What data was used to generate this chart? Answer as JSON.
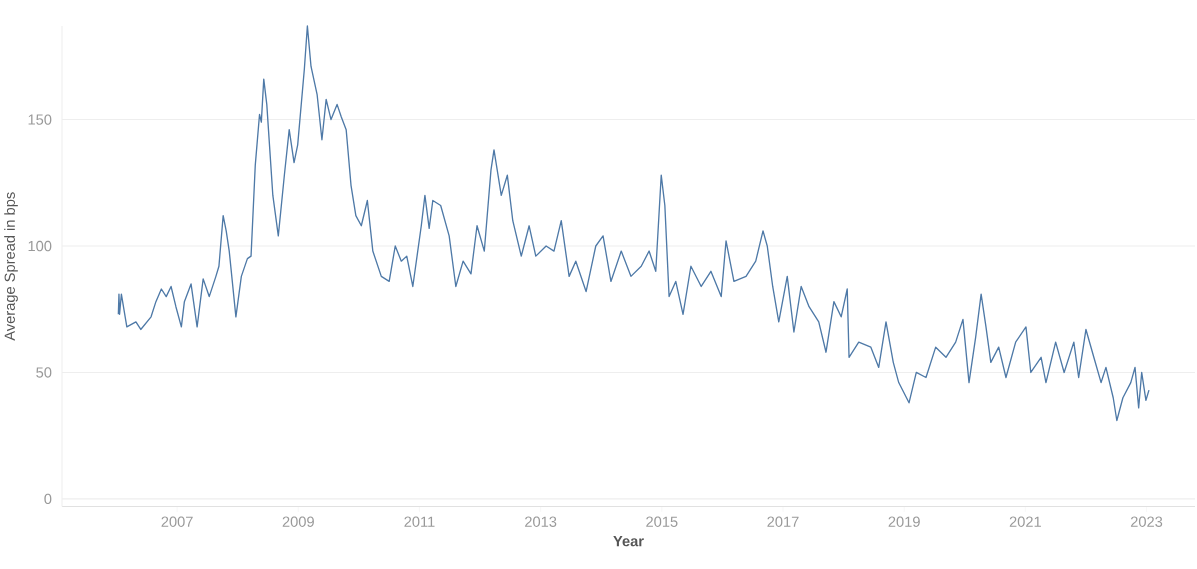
{
  "chart_data": {
    "type": "line",
    "xlabel": "Year",
    "ylabel": "Average Spread in bps",
    "color": "#4e79a7",
    "grid": "y",
    "xlim": [
      2005.1,
      2023.8
    ],
    "ylim": [
      -3,
      187
    ],
    "xticks": [
      2007,
      2009,
      2011,
      2013,
      2015,
      2017,
      2019,
      2021,
      2023
    ],
    "yticks": [
      0,
      50,
      100,
      150
    ],
    "x": [
      2006.03,
      2006.04,
      2006.05,
      2006.08,
      2006.17,
      2006.32,
      2006.4,
      2006.57,
      2006.65,
      2006.74,
      2006.82,
      2006.9,
      2006.98,
      2007.07,
      2007.12,
      2007.23,
      2007.33,
      2007.43,
      2007.53,
      2007.64,
      2007.69,
      2007.76,
      2007.81,
      2007.86,
      2007.97,
      2008.06,
      2008.16,
      2008.22,
      2008.29,
      2008.36,
      2008.39,
      2008.43,
      2008.48,
      2008.58,
      2008.67,
      2008.77,
      2008.85,
      2008.93,
      2008.99,
      2009.1,
      2009.15,
      2009.21,
      2009.31,
      2009.39,
      2009.46,
      2009.54,
      2009.64,
      2009.71,
      2009.79,
      2009.87,
      2009.95,
      2010.04,
      2010.14,
      2010.23,
      2010.37,
      2010.5,
      2010.6,
      2010.7,
      2010.79,
      2010.89,
      2011.03,
      2011.09,
      2011.16,
      2011.22,
      2011.35,
      2011.49,
      2011.6,
      2011.72,
      2011.85,
      2011.95,
      2012.07,
      2012.18,
      2012.23,
      2012.35,
      2012.45,
      2012.54,
      2012.68,
      2012.81,
      2012.92,
      2013.09,
      2013.22,
      2013.34,
      2013.47,
      2013.58,
      2013.75,
      2013.91,
      2014.03,
      2014.16,
      2014.33,
      2014.49,
      2014.66,
      2014.79,
      2014.9,
      2014.99,
      2015.05,
      2015.12,
      2015.23,
      2015.35,
      2015.48,
      2015.65,
      2015.81,
      2015.98,
      2016.06,
      2016.19,
      2016.39,
      2016.55,
      2016.67,
      2016.74,
      2016.83,
      2016.93,
      2017.07,
      2017.18,
      2017.3,
      2017.43,
      2017.59,
      2017.71,
      2017.84,
      2017.96,
      2018.06,
      2018.09,
      2018.25,
      2018.45,
      2018.58,
      2018.7,
      2018.82,
      2018.91,
      2019.08,
      2019.2,
      2019.36,
      2019.52,
      2019.69,
      2019.85,
      2019.97,
      2020.07,
      2020.18,
      2020.27,
      2020.35,
      2020.43,
      2020.56,
      2020.68,
      2020.84,
      2021.01,
      2021.09,
      2021.26,
      2021.34,
      2021.5,
      2021.64,
      2021.8,
      2021.88,
      2022.0,
      2022.13,
      2022.25,
      2022.33,
      2022.45,
      2022.51,
      2022.61,
      2022.74,
      2022.81,
      2022.87,
      2022.92,
      2022.99,
      2023.04
    ],
    "values": [
      73,
      81,
      73,
      81,
      68,
      70,
      67,
      72,
      78,
      83,
      80,
      84,
      76,
      68,
      78,
      85,
      68,
      87,
      80,
      88,
      92,
      112,
      106,
      98,
      72,
      88,
      95,
      96,
      132,
      152,
      149,
      166,
      156,
      120,
      104,
      128,
      146,
      133,
      140,
      170,
      187,
      171,
      160,
      142,
      158,
      150,
      156,
      151,
      146,
      124,
      112,
      108,
      118,
      98,
      88,
      86,
      100,
      94,
      96,
      84,
      108,
      120,
      107,
      118,
      116,
      104,
      84,
      94,
      89,
      108,
      98,
      130,
      138,
      120,
      128,
      110,
      96,
      108,
      96,
      100,
      98,
      110,
      88,
      94,
      82,
      100,
      104,
      86,
      98,
      88,
      92,
      98,
      90,
      128,
      116,
      80,
      86,
      73,
      92,
      84,
      90,
      80,
      102,
      86,
      88,
      94,
      106,
      100,
      84,
      70,
      88,
      66,
      84,
      76,
      70,
      58,
      78,
      72,
      83,
      56,
      62,
      60,
      52,
      70,
      54,
      46,
      38,
      50,
      48,
      60,
      56,
      62,
      71,
      46,
      64,
      81,
      68,
      54,
      60,
      48,
      62,
      68,
      50,
      56,
      46,
      62,
      50,
      62,
      48,
      67,
      56,
      46,
      52,
      40,
      31,
      40,
      46,
      52,
      36,
      50,
      39,
      43
    ]
  }
}
